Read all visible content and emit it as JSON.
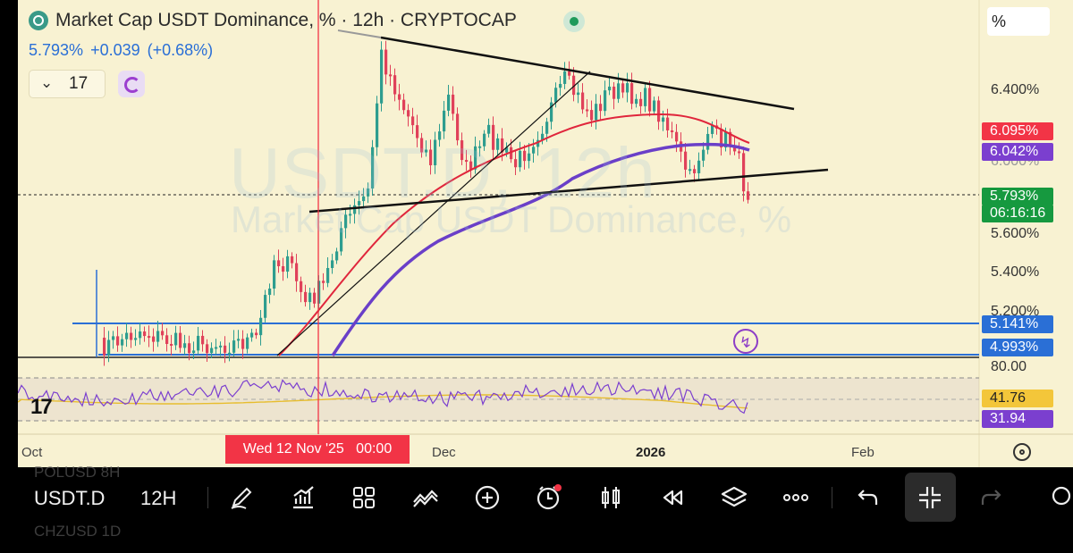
{
  "header": {
    "title": "Market Cap USDT Dominance, % · 12h · CRYPTOCAP",
    "price": "5.793%",
    "change": "+0.039",
    "change_pct": "(+0.68%)",
    "studies_count": "17",
    "watermark_symbol": "USDT.D, 12h",
    "watermark_name": "Market Cap USDT Dominance, %"
  },
  "axis": {
    "unit": "%",
    "labels": [
      "6.400%",
      "6.000%",
      "5.600%",
      "5.400%",
      "5.200%"
    ],
    "rsi_labels": [
      "80.00"
    ]
  },
  "badges": [
    {
      "text": "6.095%",
      "color": "#f23446"
    },
    {
      "text": "6.042%",
      "color": "#7b3fcf"
    },
    {
      "text": "5.793%",
      "color": "#16993f"
    },
    {
      "text": "06:16:16",
      "color": "#16993f"
    },
    {
      "text": "5.141%",
      "color": "#2a6fd6"
    },
    {
      "text": "4.993%",
      "color": "#2a6fd6"
    },
    {
      "text": "41.76",
      "color": "#f3c63a"
    },
    {
      "text": "31.94",
      "color": "#7b3fcf"
    }
  ],
  "time_axis": {
    "labels": [
      "Oct",
      "Dec",
      "2026",
      "Feb"
    ],
    "crosshair_date": "Wed 12 Nov '25",
    "crosshair_time": "00:00"
  },
  "toolbar": {
    "symbol": "USDT.D",
    "interval": "12H",
    "ghost_top": "POLUSD    8H",
    "ghost_bottom": "CHZUSD    1D",
    "icons": [
      "pencil-icon",
      "chart-type-icon",
      "grid-icon",
      "indicators-icon",
      "add-icon",
      "alert-icon",
      "candles-icon",
      "replay-icon",
      "layers-icon",
      "more-icon",
      "undo-icon",
      "exit-fullscreen-icon",
      "redo-icon"
    ]
  },
  "colors": {
    "background": "#f8f2d2",
    "up": "#2e9d8f",
    "down": "#e0415a",
    "ma_fast": "#e0263c",
    "ma_slow": "#6a3fc8",
    "level": "#2a6fd6"
  }
}
